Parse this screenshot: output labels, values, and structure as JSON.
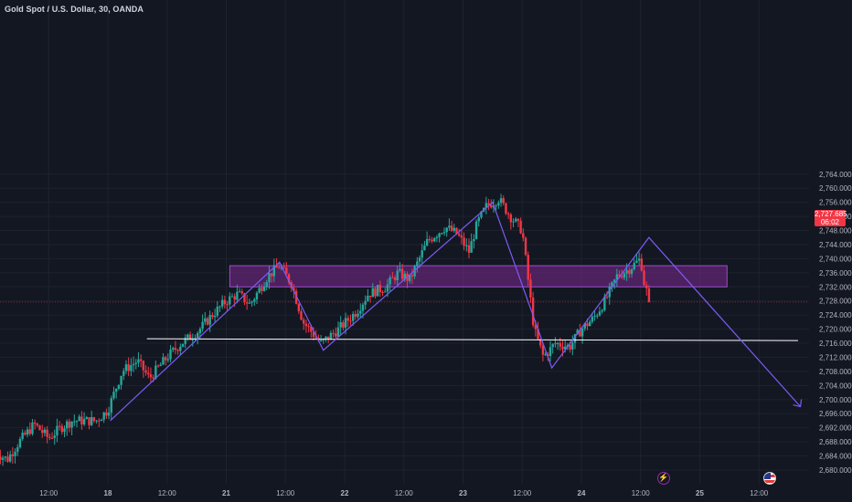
{
  "header": {
    "title": "Gold Spot / U.S. Dollar, 30, OANDA"
  },
  "price_tag": {
    "price": "2,727.685",
    "countdown": "06:02"
  },
  "events": {
    "bolt_icon": "lightning-icon",
    "flag_icon": "us-flag-icon"
  },
  "colors": {
    "background": "#131722",
    "up": "#26a69a",
    "down": "#f23645",
    "pattern": "#7b5cf5",
    "zone": "#7b2a8f",
    "support": "#ffffff"
  },
  "chart_data": {
    "type": "candlestick",
    "title": "Gold Spot / U.S. Dollar, 30, OANDA",
    "ylim": [
      2678,
      2766
    ],
    "yticks": [
      2680,
      2684,
      2688,
      2692,
      2696,
      2700,
      2704,
      2708,
      2712,
      2716,
      2720,
      2724,
      2728,
      2732,
      2736,
      2740,
      2744,
      2748,
      2752,
      2756,
      2760,
      2764
    ],
    "ytick_labels": [
      "2,680.000",
      "2,684.000",
      "2,688.000",
      "2,692.000",
      "2,696.000",
      "2,700.000",
      "2,704.000",
      "2,708.000",
      "2,712.000",
      "2,716.000",
      "2,720.000",
      "2,724.000",
      "2,728.000",
      "2,732.000",
      "2,736.000",
      "2,740.000",
      "2,744.000",
      "2,748.000",
      "2,752.000",
      "2,756.000",
      "2,760.000",
      "2,764.000"
    ],
    "xticks": [
      {
        "label": "12:00",
        "t": -0.5
      },
      {
        "label": "18",
        "t": 0
      },
      {
        "label": "12:00",
        "t": 0.5
      },
      {
        "label": "21",
        "t": 1
      },
      {
        "label": "12:00",
        "t": 1.5
      },
      {
        "label": "22",
        "t": 2
      },
      {
        "label": "12:00",
        "t": 2.5
      },
      {
        "label": "23",
        "t": 3
      },
      {
        "label": "12:00",
        "t": 3.5
      },
      {
        "label": "24",
        "t": 4
      },
      {
        "label": "12:00",
        "t": 4.5
      },
      {
        "label": "25",
        "t": 5
      },
      {
        "label": "12:00",
        "t": 5.5
      }
    ],
    "last_price": 2727.685,
    "price_path": [
      [
        -0.95,
        2685
      ],
      [
        -0.85,
        2683
      ],
      [
        -0.75,
        2688
      ],
      [
        -0.62,
        2693
      ],
      [
        -0.5,
        2689
      ],
      [
        -0.4,
        2692
      ],
      [
        -0.3,
        2694
      ],
      [
        -0.1,
        2694
      ],
      [
        0,
        2697
      ],
      [
        0.12,
        2708
      ],
      [
        0.25,
        2711
      ],
      [
        0.35,
        2706
      ],
      [
        0.5,
        2712
      ],
      [
        0.62,
        2716
      ],
      [
        0.75,
        2719
      ],
      [
        0.88,
        2724
      ],
      [
        1.0,
        2728
      ],
      [
        1.1,
        2730
      ],
      [
        1.2,
        2727
      ],
      [
        1.35,
        2735
      ],
      [
        1.45,
        2738
      ],
      [
        1.55,
        2733
      ],
      [
        1.65,
        2722
      ],
      [
        1.8,
        2716
      ],
      [
        1.95,
        2720
      ],
      [
        2.1,
        2725
      ],
      [
        2.2,
        2730
      ],
      [
        2.35,
        2732
      ],
      [
        2.45,
        2736
      ],
      [
        2.55,
        2734
      ],
      [
        2.7,
        2745
      ],
      [
        2.85,
        2749
      ],
      [
        2.95,
        2747
      ],
      [
        3.05,
        2742
      ],
      [
        3.12,
        2750
      ],
      [
        3.2,
        2755
      ],
      [
        3.3,
        2757
      ],
      [
        3.4,
        2752
      ],
      [
        3.5,
        2748
      ],
      [
        3.6,
        2720
      ],
      [
        3.68,
        2712
      ],
      [
        3.78,
        2716
      ],
      [
        3.9,
        2715
      ],
      [
        4.0,
        2720
      ],
      [
        4.1,
        2723
      ],
      [
        4.2,
        2728
      ],
      [
        4.3,
        2735
      ],
      [
        4.4,
        2737
      ],
      [
        4.5,
        2740
      ],
      [
        4.53,
        2733
      ],
      [
        4.58,
        2727.685
      ]
    ],
    "annotations": {
      "resistance_zone": [
        2732,
        2738
      ],
      "support_line": 2717,
      "pattern_path": [
        [
          0.02,
          2694
        ],
        [
          1.45,
          2739
        ],
        [
          1.82,
          2714
        ],
        [
          3.25,
          2756
        ],
        [
          3.75,
          2709
        ],
        [
          4.57,
          2746
        ],
        [
          5.85,
          2698
        ]
      ]
    }
  }
}
